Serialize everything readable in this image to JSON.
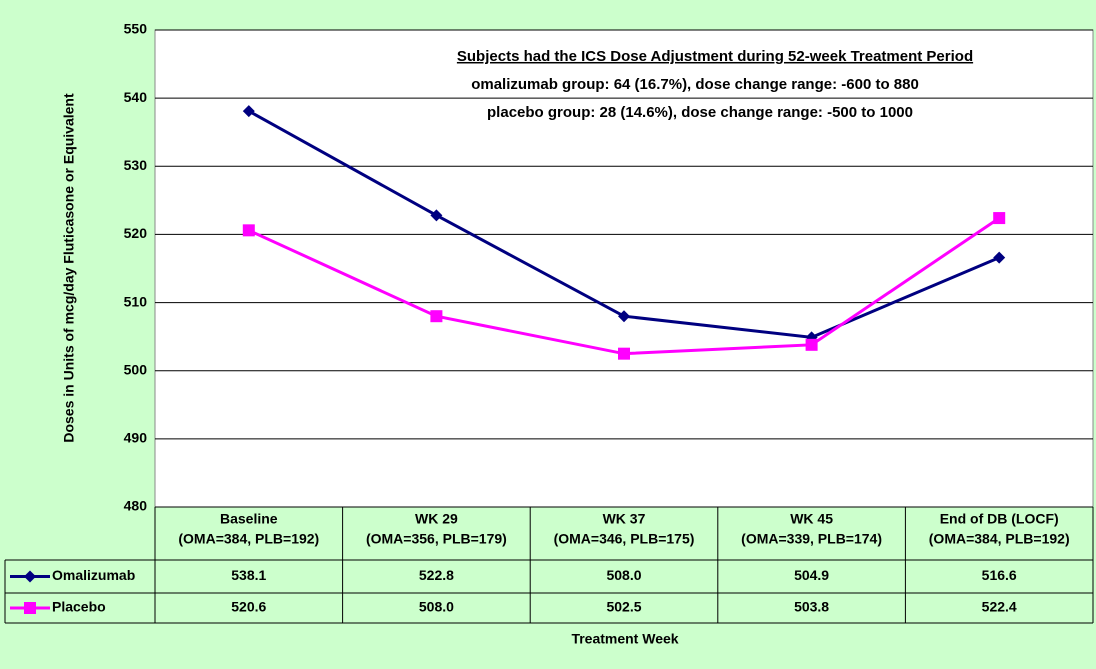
{
  "chart_data": {
    "type": "line",
    "annotations": [
      "Subjects had the ICS Dose Adjustment during 52-week Treatment Period",
      "omalizumab group:  64 (16.7%), dose change range: -600 to 880",
      "placebo group: 28 (14.6%), dose change range: -500 to 1000"
    ],
    "xlabel": "Treatment Week",
    "ylabel": "Doses in Units of mcg/day Fluticasone or Equivalent",
    "categories": [
      [
        "Baseline",
        "(OMA=384, PLB=192)"
      ],
      [
        "WK 29",
        "(OMA=356, PLB=179)"
      ],
      [
        "WK 37",
        "(OMA=346, PLB=175)"
      ],
      [
        "WK 45",
        "(OMA=339, PLB=174)"
      ],
      [
        "End of DB (LOCF)",
        "(OMA=384, PLB=192)"
      ]
    ],
    "series": [
      {
        "name": "Omalizumab",
        "color": "#000080",
        "marker": "diamond",
        "values": [
          538.1,
          522.8,
          508.0,
          504.9,
          516.6
        ],
        "value_labels": [
          "538.1",
          "522.8",
          "508.0",
          "504.9",
          "516.6"
        ]
      },
      {
        "name": "Placebo",
        "color": "#ff00ff",
        "marker": "square",
        "values": [
          520.6,
          508.0,
          502.5,
          503.8,
          522.4
        ],
        "value_labels": [
          "520.6",
          "508.0",
          "502.5",
          "503.8",
          "522.4"
        ]
      }
    ],
    "ylim": [
      480,
      550
    ],
    "yticks": [
      480,
      490,
      500,
      510,
      520,
      530,
      540,
      550
    ],
    "grid": true
  }
}
